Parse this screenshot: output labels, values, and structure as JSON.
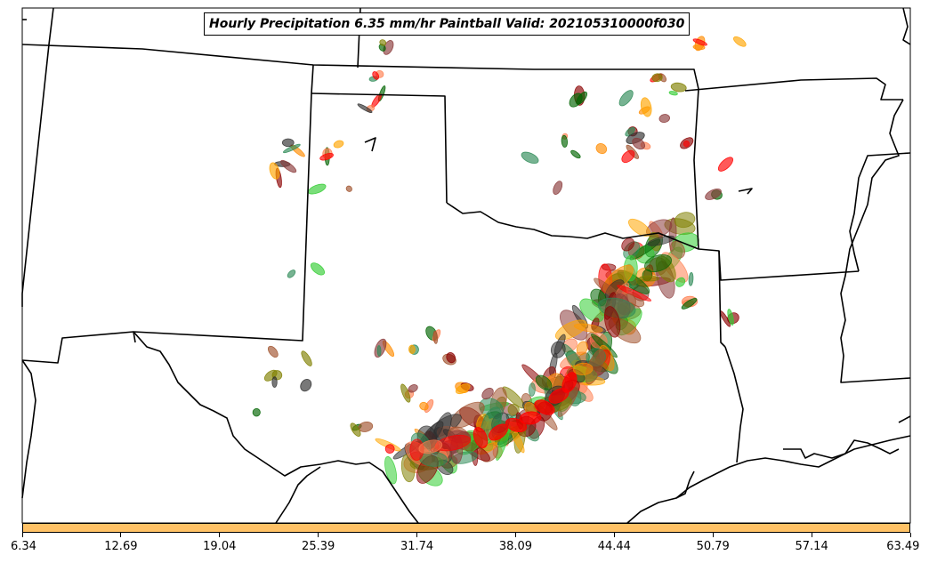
{
  "map": {
    "title": "Hourly Precipitation 6.35 mm/hr Paintball Valid: 202105310000f030",
    "colors": {
      "member_palette": [
        "#8b0000",
        "#2e8b57",
        "#ff8c00",
        "#ff0000",
        "#808000",
        "#2f2f2f",
        "#ffa500",
        "#32cd32",
        "#a0522d",
        "#006400",
        "#ff7f50",
        "#8b3a3a"
      ],
      "colorbar_fill": "#ffc266",
      "boundaries": "#000000"
    }
  },
  "colorbar": {
    "ticks": [
      "6.34",
      "12.69",
      "19.04",
      "25.39",
      "31.74",
      "38.09",
      "44.44",
      "50.79",
      "57.14",
      "63.49"
    ]
  }
}
